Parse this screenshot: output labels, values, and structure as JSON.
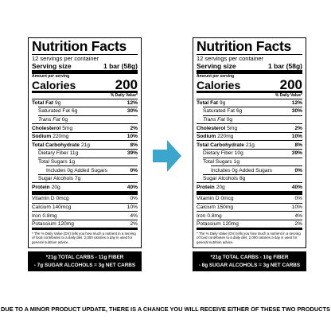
{
  "labels": [
    {
      "title": "Nutrition Facts",
      "servings": "12 servings per container",
      "serving_size_label": "Serving size",
      "serving_size": "1 bar (58g)",
      "amount_per_serving": "Amount per serving",
      "calories_label": "Calories",
      "calories": "200",
      "dv_header": "% Daily Value*",
      "nutrients": [
        {
          "name": "Total Fat",
          "amount": "9g",
          "dv": "12%"
        },
        {
          "name": "Saturated Fat",
          "amount": "6g",
          "dv": "30%"
        },
        {
          "name": "Trans Fat",
          "amount": "0g"
        },
        {
          "name": "Cholesterol",
          "amount": "5mg",
          "dv": "2%"
        },
        {
          "name": "Sodium",
          "amount": "220mg",
          "dv": "10%"
        },
        {
          "name": "Total Carbohydrate",
          "amount": "21g",
          "dv": "8%"
        },
        {
          "name": "Dietary Fiber",
          "amount": "11g",
          "dv": "39%"
        },
        {
          "name": "Total Sugars",
          "amount": "1g"
        },
        {
          "name": "Includes 0g Added Sugars",
          "amount": "",
          "dv": "0%"
        },
        {
          "name": "Sugar Alcohols",
          "amount": "7g"
        },
        {
          "name": "Protein",
          "amount": "20g",
          "dv": "40%"
        }
      ],
      "vitamins": [
        {
          "name": "Vitamin D",
          "amount": "0mcg",
          "dv": "0%"
        },
        {
          "name": "Calcium",
          "amount": "140mcg",
          "dv": "10%"
        },
        {
          "name": "Iron",
          "amount": "0.8mg",
          "dv": "4%"
        },
        {
          "name": "Potassium",
          "amount": "120mg",
          "dv": "2%"
        }
      ],
      "footnote": "* The % Daily Value (DV) tells you how much a nutrient in a serving of food contributes to a daily diet. 2,000 calories a day is used for general nutrition advice.",
      "net_carbs": [
        "*21g TOTAL CARBS - 11g FIBER",
        "- 7g SUGAR ALCOHOLS = 3g NET CARBS"
      ]
    },
    {
      "title": "Nutrition Facts",
      "servings": "12 servings per container",
      "serving_size_label": "Serving size",
      "serving_size": "1 bar (58g)",
      "amount_per_serving": "Amount per serving",
      "calories_label": "Calories",
      "calories": "200",
      "dv_header": "% Daily Value*",
      "nutrients": [
        {
          "name": "Total Fat",
          "amount": "9g",
          "dv": "12%"
        },
        {
          "name": "Saturated Fat",
          "amount": "6g",
          "dv": "30%"
        },
        {
          "name": "Trans Fat",
          "amount": "0g"
        },
        {
          "name": "Cholesterol",
          "amount": "5mg",
          "dv": "2%"
        },
        {
          "name": "Sodium",
          "amount": "220mg",
          "dv": "10%"
        },
        {
          "name": "Total Carbohydrate",
          "amount": "21g",
          "dv": "8%"
        },
        {
          "name": "Dietary Fiber",
          "amount": "10g",
          "dv": "39%"
        },
        {
          "name": "Total Sugars",
          "amount": "1g"
        },
        {
          "name": "Includes 0g Added Sugars",
          "amount": "",
          "dv": "0%"
        },
        {
          "name": "Sugar Alcohols",
          "amount": "8g"
        },
        {
          "name": "Protein",
          "amount": "20g",
          "dv": "40%"
        }
      ],
      "vitamins": [
        {
          "name": "Vitamin D",
          "amount": "0mcg",
          "dv": "0%"
        },
        {
          "name": "Calcium",
          "amount": "150mg",
          "dv": "10%"
        },
        {
          "name": "Iron",
          "amount": "0.8mg",
          "dv": "4%"
        },
        {
          "name": "Potassium",
          "amount": "120mg",
          "dv": "2%"
        }
      ],
      "footnote": "* The % Daily Value (DV) tells you how much a nutrient in a serving of food contributes to a daily diet. 2,000 calories a day is used for general nutrition advice.",
      "net_carbs": [
        "*21g TOTAL CARBS - 10g FIBER",
        "- 8g SUGAR ALCOHOLS = 3g NET CARBS"
      ]
    }
  ],
  "notice": "DUE TO A MINOR PRODUCT UPDATE, THERE IS A CHANCE YOU WILL RECEIVE EITHER OF THESE TWO PRODUCTS"
}
